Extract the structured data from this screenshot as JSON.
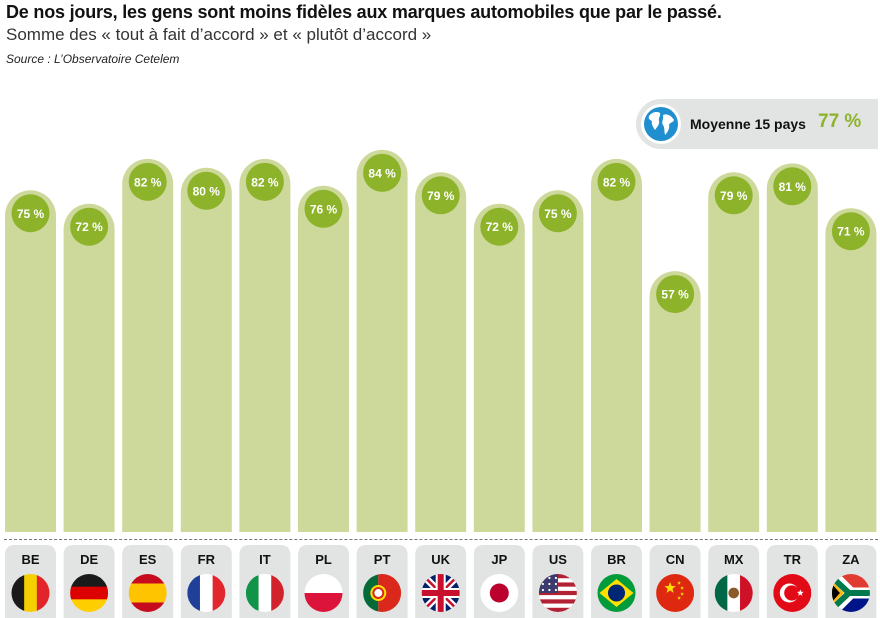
{
  "title": "De nos jours, les gens sont moins fidèles aux marques automobiles que par le passé.",
  "subtitle": "Somme des « tout à fait d’accord » et « plutôt d’accord »",
  "source": "Source : L’Observatoire Cetelem",
  "average": {
    "label": "Moyenne 15 pays",
    "value": "77 %",
    "icon": "globe-icon"
  },
  "colors": {
    "bar": "#cdd99a",
    "bubble": "#8db32b",
    "tab": "#e2e3e3",
    "avg_value": "#8db32b"
  },
  "chart_data": {
    "type": "bar",
    "categories": [
      "BE",
      "DE",
      "ES",
      "FR",
      "IT",
      "PL",
      "PT",
      "UK",
      "JP",
      "US",
      "BR",
      "CN",
      "MX",
      "TR",
      "ZA"
    ],
    "values": [
      75,
      72,
      82,
      80,
      82,
      76,
      84,
      79,
      72,
      75,
      82,
      57,
      79,
      81,
      71
    ],
    "value_labels": [
      "75 %",
      "72 %",
      "82 %",
      "80 %",
      "82 %",
      "76 %",
      "84 %",
      "79 %",
      "72 %",
      "75 %",
      "82 %",
      "57 %",
      "79 %",
      "81 %",
      "71 %"
    ],
    "unit": "%",
    "flags": [
      "flag-belgium-icon",
      "flag-germany-icon",
      "flag-spain-icon",
      "flag-france-icon",
      "flag-italy-icon",
      "flag-poland-icon",
      "flag-portugal-icon",
      "flag-uk-icon",
      "flag-japan-icon",
      "flag-usa-icon",
      "flag-brazil-icon",
      "flag-china-icon",
      "flag-mexico-icon",
      "flag-turkey-icon",
      "flag-south-africa-icon"
    ]
  }
}
